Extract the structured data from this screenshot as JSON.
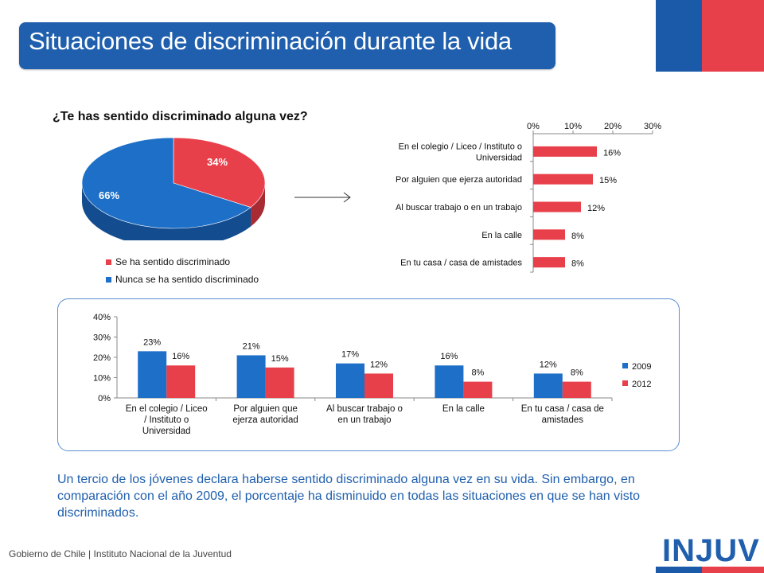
{
  "header": {
    "title": "Situaciones de discriminación durante la vida"
  },
  "colors": {
    "blue": "#1f5fad",
    "bar_blue": "#1e6fc8",
    "red": "#e8404a"
  },
  "pie": {
    "question": "¿Te has sentido discriminado alguna vez?",
    "slices": [
      {
        "label": "Se ha sentido discriminado",
        "value": 34,
        "value_label": "34%"
      },
      {
        "label": "Nunca se ha sentido discriminado",
        "value": 66,
        "value_label": "66%"
      }
    ]
  },
  "chart_data": [
    {
      "type": "pie",
      "title": "¿Te has sentido discriminado alguna vez?",
      "categories": [
        "Se ha sentido discriminado",
        "Nunca se ha sentido discriminado"
      ],
      "values": [
        34,
        66
      ],
      "legend": "bottom"
    },
    {
      "type": "bar",
      "orientation": "horizontal",
      "categories": [
        "En el colegio / Liceo / Instituto o Universidad",
        "Por alguien que ejerza autoridad",
        "Al buscar trabajo o en un trabajo",
        "En la calle",
        "En tu casa / casa de amistades"
      ],
      "values": [
        16,
        15,
        12,
        8,
        8
      ],
      "value_labels": [
        "16%",
        "15%",
        "12%",
        "8%",
        "8%"
      ],
      "xlim": [
        0,
        30
      ],
      "ticks": [
        "0%",
        "10%",
        "20%",
        "30%"
      ],
      "axis_position": "top"
    },
    {
      "type": "bar",
      "categories": [
        "En el colegio / Liceo / Instituto o Universidad",
        "Por alguien que ejerza autoridad",
        "Al buscar trabajo o en un trabajo",
        "En la calle",
        "En tu casa / casa de amistades"
      ],
      "series": [
        {
          "name": "2009",
          "values": [
            23,
            21,
            17,
            16,
            12
          ],
          "labels": [
            "23%",
            "21%",
            "17%",
            "16%",
            "12%"
          ]
        },
        {
          "name": "2012",
          "values": [
            16,
            15,
            12,
            8,
            8
          ],
          "labels": [
            "16%",
            "15%",
            "12%",
            "8%",
            "8%"
          ]
        }
      ],
      "ylim": [
        0,
        40
      ],
      "ticks": [
        "0%",
        "10%",
        "20%",
        "30%",
        "40%"
      ],
      "legend": "right"
    }
  ],
  "summary": "Un tercio de los jóvenes declara haberse sentido discriminado alguna vez en su vida. Sin embargo, en comparación con el año 2009, el porcentaje ha disminuido en todas las situaciones en que se han visto discriminados.",
  "footer": {
    "text": "Gobierno de Chile | Instituto Nacional de la Juventud",
    "brand": "INJUV"
  }
}
